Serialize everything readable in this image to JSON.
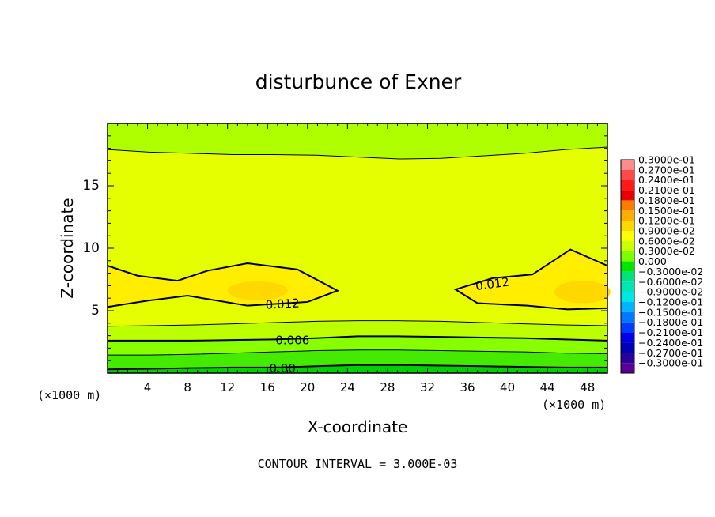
{
  "chart_data": {
    "type": "heatmap",
    "title": "disturbunce of Exner",
    "xlabel": "X-coordinate",
    "ylabel": "Z-coordinate",
    "x_unit": "(×1000 m)",
    "x_unit_right": "(×1000 m)",
    "xlim": [
      0,
      50
    ],
    "ylim": [
      0,
      20
    ],
    "x_ticks": [
      4,
      8,
      12,
      16,
      20,
      24,
      28,
      32,
      36,
      40,
      44,
      48
    ],
    "y_ticks": [
      5,
      10,
      15
    ],
    "footer": "CONTOUR INTERVAL = 3.000E-03",
    "contour_labels": [
      {
        "text": "0.012",
        "x": 17.5,
        "z": 5.5
      },
      {
        "text": "0.012",
        "x": 38.5,
        "z": 7.1
      },
      {
        "text": "0.006",
        "x": 18.5,
        "z": 2.6
      },
      {
        "text": "0.00",
        "x": 17.5,
        "z": 0.35
      }
    ],
    "colorbar": {
      "labels": [
        "0.3000e-01",
        "0.2700e-01",
        "0.2400e-01",
        "0.2100e-01",
        "0.1800e-01",
        "0.1500e-01",
        "0.1200e-01",
        "0.9000e-02",
        "0.6000e-02",
        "0.3000e-02",
        "0.000",
        "−0.3000e-02",
        "−0.6000e-02",
        "−0.9000e-02",
        "−0.1200e-01",
        "−0.1500e-01",
        "−0.1800e-01",
        "−0.2100e-01",
        "−0.2400e-01",
        "−0.2700e-01",
        "−0.3000e-01"
      ],
      "colors": [
        "#ff8c8c",
        "#ff4a4a",
        "#ff1a1a",
        "#e60000",
        "#ff7a00",
        "#ffae00",
        "#ffd800",
        "#ffff00",
        "#ccff00",
        "#7cff00",
        "#00e600",
        "#00e27a",
        "#00e6b4",
        "#00e6e6",
        "#00b4ff",
        "#0078ff",
        "#003cff",
        "#0000e6",
        "#0000b4",
        "#2a0096",
        "#5a0096"
      ]
    },
    "levels": [
      -0.003,
      0,
      0.003,
      0.006,
      0.009,
      0.012,
      0.015
    ],
    "level_colors": [
      "#00dc00",
      "#3ce600",
      "#7cff00",
      "#a8ff00",
      "#ccff00",
      "#ffff00",
      "#ffd800"
    ],
    "contours_z": [
      {
        "level": 0.0,
        "z": [
          0.3,
          0.35,
          0.4,
          0.45,
          0.45,
          0.55,
          0.65,
          0.65,
          0.6,
          0.55,
          0.5,
          0.45,
          0.45
        ]
      },
      {
        "level": 0.003,
        "z": [
          1.45,
          1.45,
          1.5,
          1.6,
          1.7,
          1.8,
          1.85,
          1.85,
          1.8,
          1.75,
          1.7,
          1.6,
          1.55
        ]
      },
      {
        "level": 0.006,
        "z": [
          2.6,
          2.6,
          2.6,
          2.65,
          2.7,
          2.8,
          2.95,
          2.95,
          2.9,
          2.85,
          2.8,
          2.7,
          2.6
        ]
      },
      {
        "level": 0.009,
        "z": [
          3.75,
          3.8,
          3.85,
          3.95,
          4.05,
          4.15,
          4.2,
          4.2,
          4.15,
          4.05,
          3.95,
          3.85,
          3.8
        ]
      },
      {
        "level": 0.009,
        "z": [
          17.9,
          17.7,
          17.6,
          17.5,
          17.5,
          17.45,
          17.3,
          17.15,
          17.2,
          17.4,
          17.6,
          17.9,
          18.1
        ]
      }
    ],
    "core_0012": [
      {
        "x": 0,
        "z": 8.6
      },
      {
        "x": 3,
        "z": 7.8
      },
      {
        "x": 7,
        "z": 7.4
      },
      {
        "x": 10,
        "z": 8.2
      },
      {
        "x": 14,
        "z": 8.8
      },
      {
        "x": 19,
        "z": 8.3
      },
      {
        "x": 23,
        "z": 6.6
      },
      {
        "x": 20,
        "z": 5.7
      },
      {
        "x": 14,
        "z": 5.4
      },
      {
        "x": 8,
        "z": 6.2
      },
      {
        "x": 4,
        "z": 5.8
      },
      {
        "x": 0,
        "z": 5.3
      }
    ],
    "right_0012": [
      {
        "x": 50,
        "z": 8.6
      },
      {
        "x": 46.3,
        "z": 9.9
      },
      {
        "x": 42.5,
        "z": 7.9
      },
      {
        "x": 38.5,
        "z": 7.6
      },
      {
        "x": 34.8,
        "z": 6.7
      },
      {
        "x": 37,
        "z": 5.6
      },
      {
        "x": 42,
        "z": 5.4
      },
      {
        "x": 46,
        "z": 5.1
      },
      {
        "x": 50,
        "z": 5.2
      }
    ],
    "inner_0015": [
      {
        "cx": 15.0,
        "cz": 6.6,
        "rx": 3.0,
        "rz": 0.75
      },
      {
        "cx": 47.5,
        "cz": 6.5,
        "rx": 2.8,
        "rz": 0.9
      }
    ]
  }
}
